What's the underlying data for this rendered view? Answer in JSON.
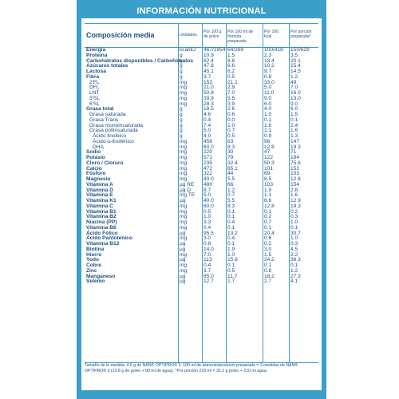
{
  "title": "INFORMACIÓN NUTRICIONAL",
  "headers": {
    "composition": "Composición media",
    "units": "Unidades",
    "per100g": "Por 100 g de polvo",
    "per100ml": "Por 100 ml de fórmula preparada",
    "per100kcal": "Por 100 kcal",
    "perPortion": "Por porción preparada*"
  },
  "rows": [
    {
      "name": "Energía",
      "unit": "kcal/kJ",
      "v1": "467/1954",
      "v2": "64/269",
      "v3": "100/418",
      "v4": "150/629",
      "level": 0
    },
    {
      "name": "Proteína",
      "unit": "g",
      "v1": "10.9",
      "v2": "1.5",
      "v3": "2.3",
      "v4": "3.5",
      "level": 0
    },
    {
      "name": "Carbohidratos disponibles / Carbohidratos",
      "unit": "g",
      "v1": "62.4",
      "v2": "8.6",
      "v3": "13.4",
      "v4": "20.1",
      "level": 0
    },
    {
      "name": "Azúcares totales",
      "unit": "g",
      "v1": "47.8",
      "v2": "6.6",
      "v3": "10.2",
      "v4": "15.4",
      "level": 0
    },
    {
      "name": "Lactosa",
      "unit": "g",
      "v1": "45.1",
      "v2": "6.2",
      "v3": "9.7",
      "v4": "14.5",
      "level": 0
    },
    {
      "name": "Fibra",
      "unit": "g",
      "v1": "3.7",
      "v2": "0.5",
      "v3": "0.8",
      "v4": "1.2",
      "level": 0
    },
    {
      "name": "2'FL",
      "unit": "mg",
      "v1": "153",
      "v2": "21.1",
      "v3": "33.0",
      "v4": "49",
      "level": 1
    },
    {
      "name": "DFL",
      "unit": "mg",
      "v1": "21.0",
      "v2": "2.9",
      "v3": "5.0",
      "v4": "7.0",
      "level": 1
    },
    {
      "name": "LNT",
      "unit": "mg",
      "v1": "50.8",
      "v2": "7.0",
      "v3": "11.0",
      "v4": "16.0",
      "level": 1
    },
    {
      "name": "3'SL",
      "unit": "mg",
      "v1": "39.9",
      "v2": "5.5",
      "v3": "9.0",
      "v4": "13.0",
      "level": 1
    },
    {
      "name": "6'SL",
      "unit": "mg",
      "v1": "28.3",
      "v2": "3.9",
      "v3": "6.0",
      "v4": "9.0",
      "level": 1
    },
    {
      "name": "Grasa total",
      "unit": "g",
      "v1": "18.5",
      "v2": "2.6",
      "v3": "4.0",
      "v4": "6.0",
      "level": 0
    },
    {
      "name": "Grasa saturada",
      "unit": "g",
      "v1": "4.6",
      "v2": "0.6",
      "v3": "1.0",
      "v4": "1.5",
      "level": 1
    },
    {
      "name": "Grasa Trans",
      "unit": "g",
      "v1": "0.4",
      "v2": "0.0",
      "v3": "0.1",
      "v4": "0.1",
      "level": 1
    },
    {
      "name": "Grasa monoinsaturada",
      "unit": "g",
      "v1": "7.4",
      "v2": "1.0",
      "v3": "1.6",
      "v4": "2.4",
      "level": 1
    },
    {
      "name": "Grasa poliinsaturada",
      "unit": "g",
      "v1": "5.0",
      "v2": "0.7",
      "v3": "1.1",
      "v4": "1.6",
      "level": 1
    },
    {
      "name": "Ácido linoleico",
      "unit": "g",
      "v1": "4.0",
      "v2": "0.5",
      "v3": "0.9",
      "v4": "1.3",
      "level": 2
    },
    {
      "name": "Ácido α-linolénico",
      "unit": "mg",
      "v1": "456",
      "v2": "63",
      "v3": "98",
      "v4": "147",
      "level": 2
    },
    {
      "name": "DHA",
      "unit": "mg",
      "v1": "60.0",
      "v2": "8.3",
      "v3": "12.8",
      "v4": "19.3",
      "level": 2
    },
    {
      "name": "Sodio",
      "unit": "mg",
      "v1": "220",
      "v2": "30",
      "v3": "47",
      "v4": "71",
      "level": 0
    },
    {
      "name": "Potasio",
      "unit": "mg",
      "v1": "571",
      "v2": "79",
      "v3": "122",
      "v4": "184",
      "level": 0
    },
    {
      "name": "Cloro / Cloruro",
      "unit": "mg",
      "v1": "235",
      "v2": "32.4",
      "v3": "50.3",
      "v4": "75.6",
      "level": 0
    },
    {
      "name": "Calcio",
      "unit": "mg",
      "v1": "472",
      "v2": "65.1",
      "v3": "101",
      "v4": "152",
      "level": 0
    },
    {
      "name": "Fósforo",
      "unit": "mg",
      "v1": "322",
      "v2": "44",
      "v3": "69",
      "v4": "103",
      "level": 0
    },
    {
      "name": "Magnesio",
      "unit": "mg",
      "v1": "40.0",
      "v2": "5.5",
      "v3": "8.5",
      "v4": "12.8",
      "level": 0
    },
    {
      "name": "Vitamina A",
      "unit": "µg RE",
      "v1": "480",
      "v2": "66",
      "v3": "103",
      "v4": "154",
      "level": 0
    },
    {
      "name": "Vitamina D",
      "unit": "µg D",
      "v1": "8.7",
      "v2": "1.2",
      "v3": "1.9",
      "v4": "2.8",
      "level": 0
    },
    {
      "name": "Vitamina E",
      "unit": "mg TE",
      "v1": "5.0",
      "v2": "0.7",
      "v3": "1.1",
      "v4": "1.6",
      "level": 0
    },
    {
      "name": "Vitamina K1",
      "unit": "µg",
      "v1": "40.0",
      "v2": "5.5",
      "v3": "8.6",
      "v4": "12.9",
      "level": 0
    },
    {
      "name": "Vitamina C",
      "unit": "mg",
      "v1": "60.0",
      "v2": "8.3",
      "v3": "12.8",
      "v4": "19.3",
      "level": 0
    },
    {
      "name": "Vitamina B1",
      "unit": "mg",
      "v1": "0.5",
      "v2": "0.1",
      "v3": "0.1",
      "v4": "0.2",
      "level": 0
    },
    {
      "name": "Vitamina B2",
      "unit": "mg",
      "v1": "1.0",
      "v2": "0.1",
      "v3": "0.2",
      "v4": "0.3",
      "level": 0
    },
    {
      "name": "Niacina (PP)",
      "unit": "mg",
      "v1": "3.3",
      "v2": "0.4",
      "v3": "0.7",
      "v4": "1.0",
      "level": 0
    },
    {
      "name": "Vitamina B6",
      "unit": "mg",
      "v1": "0.4",
      "v2": "0.1",
      "v3": "0.1",
      "v4": "0.1",
      "level": 0
    },
    {
      "name": "Ácido Fólico",
      "unit": "µg",
      "v1": "95.5",
      "v2": "13.2",
      "v3": "20.4",
      "v4": "30.7",
      "level": 0
    },
    {
      "name": "Ácido Pantoténico",
      "unit": "mg",
      "v1": "3.0",
      "v2": "0.4",
      "v3": "0.6",
      "v4": "1.0",
      "level": 0
    },
    {
      "name": "Vitamina B12",
      "unit": "µg",
      "v1": "0.8",
      "v2": "0.1",
      "v3": "0.2",
      "v4": "0.3",
      "level": 0
    },
    {
      "name": "Biotina",
      "unit": "µg",
      "v1": "14.0",
      "v2": "1.9",
      "v3": "3.0",
      "v4": "4.5",
      "level": 0
    },
    {
      "name": "Hierro",
      "unit": "mg",
      "v1": "7.0",
      "v2": "1.0",
      "v3": "1.5",
      "v4": "2.2",
      "level": 0
    },
    {
      "name": "Yodo",
      "unit": "µg",
      "v1": "113",
      "v2": "15.6",
      "v3": "24.2",
      "v4": "36.3",
      "level": 0
    },
    {
      "name": "Cobre",
      "unit": "mg",
      "v1": "0.4",
      "v2": "0.1",
      "v3": "0.1",
      "v4": "0.1",
      "level": 0
    },
    {
      "name": "Zinc",
      "unit": "mg",
      "v1": "3.7",
      "v2": "0.5",
      "v3": "0.8",
      "v4": "1.2",
      "level": 0
    },
    {
      "name": "Manganeso",
      "unit": "µg",
      "v1": "85.0",
      "v2": "11.7",
      "v3": "18.2",
      "v4": "27.3",
      "level": 0
    },
    {
      "name": "Selenio",
      "unit": "µg",
      "v1": "12.7",
      "v2": "1.7",
      "v3": "2.7",
      "v4": "4.1",
      "level": 0
    }
  ],
  "footnote": "Tamaño de la medida: 4.6 g de NAN® OPTIPRO® 3. 100 ml de alimento/producto preparado = 3 medidas de NAN® OPTIPRO® 3 (13.8 g de polvo + 90 ml de agua). *Por porción 233 ml = 32.2 g polvo + 210 ml agua."
}
